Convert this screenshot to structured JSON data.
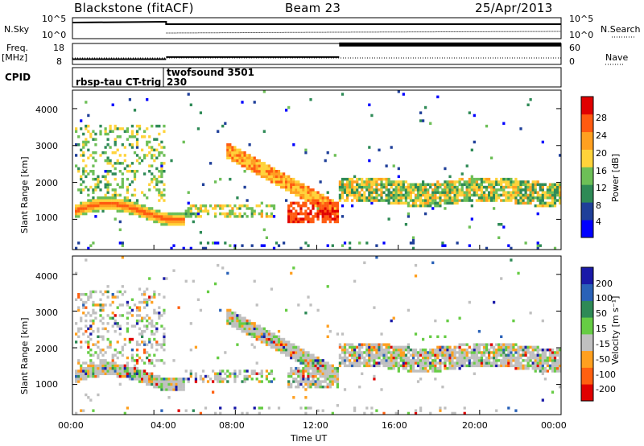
{
  "header": {
    "radar": "Blackstone (fitACF)",
    "beam": "Beam 23",
    "date": "25/Apr/2013"
  },
  "status_panels": {
    "nsky_label": "N.Sky",
    "nsky_ticks": [
      "10^5",
      "10^0"
    ],
    "nsearch_label": "N.Search",
    "nsearch_ticks": [
      "10^5",
      "10^0"
    ],
    "freq_label_1": "Freq.",
    "freq_label_2": "[MHz]",
    "freq_ticks": [
      "18",
      "8"
    ],
    "nave_label": "Nave",
    "nave_ticks": [
      "60",
      "0"
    ],
    "cpid_label": "CPID",
    "cpid_segments": [
      {
        "name": "rbsp-tau CT-trig",
        "start_hour": 0.0,
        "end_hour": 4.6
      },
      {
        "name": "twofsound 3501",
        "code": "230",
        "start_hour": 4.6,
        "end_hour": 24.0
      }
    ],
    "freq_steps": [
      {
        "start_hour": 0.0,
        "end_hour": 4.6,
        "freq_mhz": 10.5
      },
      {
        "start_hour": 4.6,
        "end_hour": 13.1,
        "freq_mhz": 11.5
      },
      {
        "start_hour": 13.1,
        "end_hour": 24.0,
        "freq_mhz": 17.5
      }
    ]
  },
  "chart_data": [
    {
      "type": "heatmap",
      "quantity": "power",
      "ylabel": "Slant Range [km]",
      "xlabel": "",
      "ylim": [
        180,
        4500
      ],
      "yticks": [
        "1000",
        "2000",
        "3000",
        "4000"
      ],
      "colorbar_label": "Power [dB]",
      "colorbar_ticks": [
        "4",
        "8",
        "12",
        "16",
        "20",
        "24",
        "28"
      ],
      "colorbar_range": [
        0,
        30
      ],
      "colors": [
        "#0000ff",
        "#1f3f99",
        "#2e8a56",
        "#6dbf57",
        "#ffd33a",
        "#ffa020",
        "#ff5a10",
        "#e00000"
      ]
    },
    {
      "type": "heatmap",
      "quantity": "velocity",
      "ylabel": "Slant Range [km]",
      "xlabel": "Time UT",
      "ylim": [
        180,
        4500
      ],
      "yticks": [
        "1000",
        "2000",
        "3000",
        "4000"
      ],
      "xticks": [
        "00:00",
        "04:00",
        "08:00",
        "12:00",
        "16:00",
        "20:00",
        "00:00"
      ],
      "colorbar_label": "Velocity [m s⁻¹]",
      "colorbar_ticks": [
        "200",
        "100",
        "50",
        "15",
        "-15",
        "-50",
        "-100",
        "-200"
      ],
      "colorbar_range": [
        -250,
        250
      ],
      "colors": [
        "#1a1aa8",
        "#2a62b8",
        "#2e8a56",
        "#66cc44",
        "#c0c0c0",
        "#ffa020",
        "#ff6010",
        "#e00000"
      ]
    }
  ]
}
